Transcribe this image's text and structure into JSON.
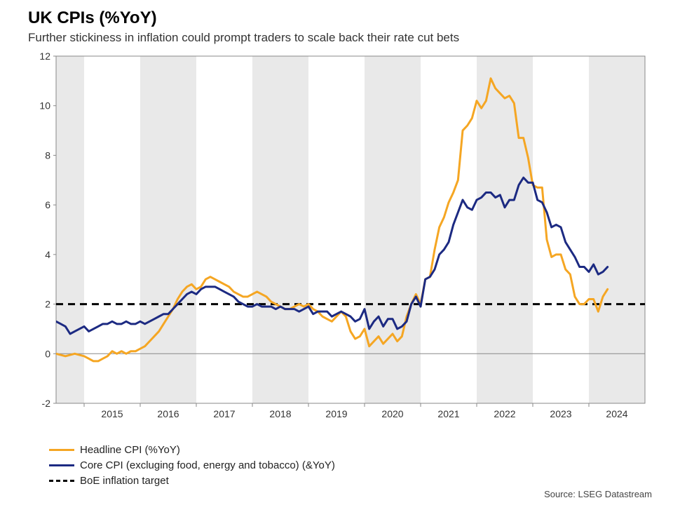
{
  "title": "UK CPIs (%YoY)",
  "subtitle": "Further stickiness in inflation could prompt traders to scale back their rate cut bets",
  "source": "Source: LSEG Datastream",
  "chart": {
    "type": "line",
    "background_color": "#ffffff",
    "alt_band_color": "#e9e9e9",
    "grid_color": "#bdbdbd",
    "axis_color": "#888888",
    "zero_line_color": "#888888",
    "ylim": [
      -2,
      12
    ],
    "ytick_step": 2,
    "x_start_year": 2014.5,
    "x_end_year": 2025.0,
    "x_tick_years": [
      2015,
      2016,
      2017,
      2018,
      2019,
      2020,
      2021,
      2022,
      2023,
      2024
    ],
    "title_fontsize": 24,
    "subtitle_fontsize": 17,
    "axis_fontsize": 14,
    "legend_fontsize": 15,
    "line_width": 3,
    "target_value": 2,
    "series": [
      {
        "key": "headline",
        "label": "Headline CPI (%YoY)",
        "color": "#f5a623",
        "style": "solid",
        "values": [
          0.0,
          -0.05,
          -0.1,
          -0.05,
          0.0,
          -0.05,
          -0.1,
          -0.2,
          -0.3,
          -0.3,
          -0.2,
          -0.1,
          0.1,
          0.0,
          0.1,
          0.0,
          0.1,
          0.1,
          0.2,
          0.3,
          0.5,
          0.7,
          0.9,
          1.2,
          1.5,
          1.8,
          2.2,
          2.5,
          2.7,
          2.8,
          2.6,
          2.7,
          3.0,
          3.1,
          3.0,
          2.9,
          2.8,
          2.7,
          2.5,
          2.4,
          2.3,
          2.3,
          2.4,
          2.5,
          2.4,
          2.3,
          2.1,
          2.0,
          1.9,
          1.8,
          1.8,
          1.9,
          2.0,
          1.9,
          2.0,
          1.8,
          1.7,
          1.5,
          1.4,
          1.3,
          1.5,
          1.7,
          1.5,
          0.9,
          0.6,
          0.7,
          1.0,
          0.3,
          0.5,
          0.7,
          0.4,
          0.6,
          0.8,
          0.5,
          0.7,
          1.5,
          2.0,
          2.4,
          2.0,
          3.0,
          3.1,
          4.2,
          5.1,
          5.5,
          6.1,
          6.5,
          7.0,
          9.0,
          9.2,
          9.5,
          10.2,
          9.9,
          10.2,
          11.1,
          10.7,
          10.5,
          10.3,
          10.4,
          10.1,
          8.7,
          8.7,
          7.9,
          6.8,
          6.7,
          6.7,
          4.6,
          3.9,
          4.0,
          4.0,
          3.4,
          3.2,
          2.3,
          2.0,
          2.0,
          2.2,
          2.2,
          1.7,
          2.3,
          2.6
        ]
      },
      {
        "key": "core",
        "label": "Core CPI (excluging food, energy and tobacco) (&YoY)",
        "color": "#1c2a82",
        "style": "solid",
        "values": [
          1.3,
          1.2,
          1.1,
          0.8,
          0.9,
          1.0,
          1.1,
          0.9,
          1.0,
          1.1,
          1.2,
          1.2,
          1.3,
          1.2,
          1.2,
          1.3,
          1.2,
          1.2,
          1.3,
          1.2,
          1.3,
          1.4,
          1.5,
          1.6,
          1.6,
          1.8,
          2.0,
          2.2,
          2.4,
          2.5,
          2.4,
          2.6,
          2.7,
          2.7,
          2.7,
          2.6,
          2.5,
          2.4,
          2.3,
          2.1,
          2.0,
          1.9,
          1.9,
          2.0,
          1.9,
          1.9,
          1.9,
          1.8,
          1.9,
          1.8,
          1.8,
          1.8,
          1.7,
          1.8,
          1.9,
          1.6,
          1.7,
          1.7,
          1.7,
          1.5,
          1.6,
          1.7,
          1.6,
          1.5,
          1.3,
          1.4,
          1.8,
          1.0,
          1.3,
          1.5,
          1.1,
          1.4,
          1.4,
          1.0,
          1.1,
          1.3,
          2.0,
          2.3,
          1.9,
          3.0,
          3.1,
          3.4,
          4.0,
          4.2,
          4.5,
          5.2,
          5.7,
          6.2,
          5.9,
          5.8,
          6.2,
          6.3,
          6.5,
          6.5,
          6.3,
          6.4,
          5.9,
          6.2,
          6.2,
          6.8,
          7.1,
          6.9,
          6.9,
          6.2,
          6.1,
          5.7,
          5.1,
          5.2,
          5.1,
          4.5,
          4.2,
          3.9,
          3.5,
          3.5,
          3.3,
          3.6,
          3.2,
          3.3,
          3.5
        ]
      }
    ],
    "target_series": {
      "label": "BoE inflation target",
      "color": "#000000",
      "style": "dash"
    }
  },
  "legend_items": [
    {
      "label": "Headline CPI (%YoY)",
      "color": "#f5a623",
      "style": "solid"
    },
    {
      "label": "Core CPI (excluging food, energy and tobacco) (&YoY)",
      "color": "#1c2a82",
      "style": "solid"
    },
    {
      "label": "BoE inflation target",
      "color": "#000000",
      "style": "dash"
    }
  ]
}
